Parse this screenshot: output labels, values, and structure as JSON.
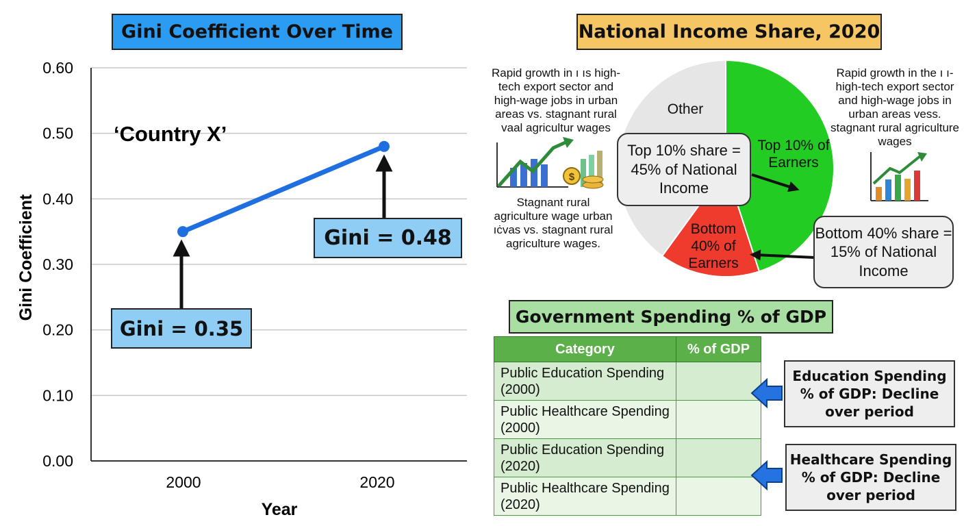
{
  "line_chart": {
    "title": "Gini Coefficient Over Time",
    "annotation_country": "‘Country X’",
    "callouts": [
      "Gini = 0.35",
      "Gini = 0.48"
    ]
  },
  "pie_chart": {
    "title": "National Income Share, 2020",
    "segment_labels": {
      "other": "Other",
      "top10": "Top 10% of Earners",
      "bottom40": "Bottom 40% of Earners"
    },
    "callouts": {
      "top": "Top 10% share = 45% of National Income",
      "bottom": "Bottom 40% share = 15% of National Income"
    },
    "side_notes": {
      "left_top": "Rapid growth in ı ıs high-tech export sector and high-wage jobs in urban areas vs. stagnant rural ᴠaal agricultur wages",
      "left_bottom": "Stagnant rural agriculture wage urban ıċvas vs. stagnant rural agriculture wages.",
      "right_top": "Rapid growth in the ı ı-high-tech export sector and high-wage jobs in urban areas vess. stagnant rural agriculture wages"
    }
  },
  "spending_table": {
    "title": "Government Spending % of GDP",
    "headers": [
      "Category",
      "% of GDP"
    ],
    "rows": [
      {
        "category": "Public Education Spending (2000)",
        "value": ""
      },
      {
        "category": "Public Healthcare Spending (2000)",
        "value": ""
      },
      {
        "category": "Public Education Spending (2020)",
        "value": ""
      },
      {
        "category": "Public Healthcare Spending (2020)",
        "value": ""
      }
    ],
    "callouts": {
      "education": "Education Spending % of GDP: Decline over period",
      "healthcare": "Healthcare Spending % of GDP: Decline over period"
    }
  },
  "colors": {
    "line": "#1f6fe0",
    "top10": "#22cc22",
    "bottom40": "#ee3b2e",
    "other": "#e6e6e6",
    "arrow_blue": "#2473e0"
  },
  "chart_data": [
    {
      "type": "line",
      "title": "Gini Coefficient Over Time",
      "xlabel": "Year",
      "ylabel": "Gini Coefficient",
      "categories": [
        "2000",
        "2020"
      ],
      "x": [
        2000,
        2020
      ],
      "series": [
        {
          "values": [
            0.35,
            0.48
          ]
        }
      ],
      "ylim": [
        0,
        0.6
      ],
      "yticks": [
        "0.00",
        "0.10",
        "0.20",
        "0.30",
        "0.40",
        "0.50",
        "0.60"
      ],
      "grid": true
    },
    {
      "type": "pie",
      "title": "National Income Share, 2020",
      "labels": [
        "Top 10% of Earners",
        "Bottom 40% of Earners",
        "Other"
      ],
      "values": [
        45,
        15,
        40
      ]
    },
    {
      "type": "table",
      "title": "Government Spending % of GDP",
      "headers": [
        "Category",
        "% of GDP"
      ],
      "rows": [
        [
          "Public Education Spending (2000)",
          ""
        ],
        [
          "Public Healthcare Spending (2000)",
          ""
        ],
        [
          "Public Education Spending (2020)",
          ""
        ],
        [
          "Public Healthcare Spending (2020)",
          ""
        ]
      ]
    }
  ]
}
